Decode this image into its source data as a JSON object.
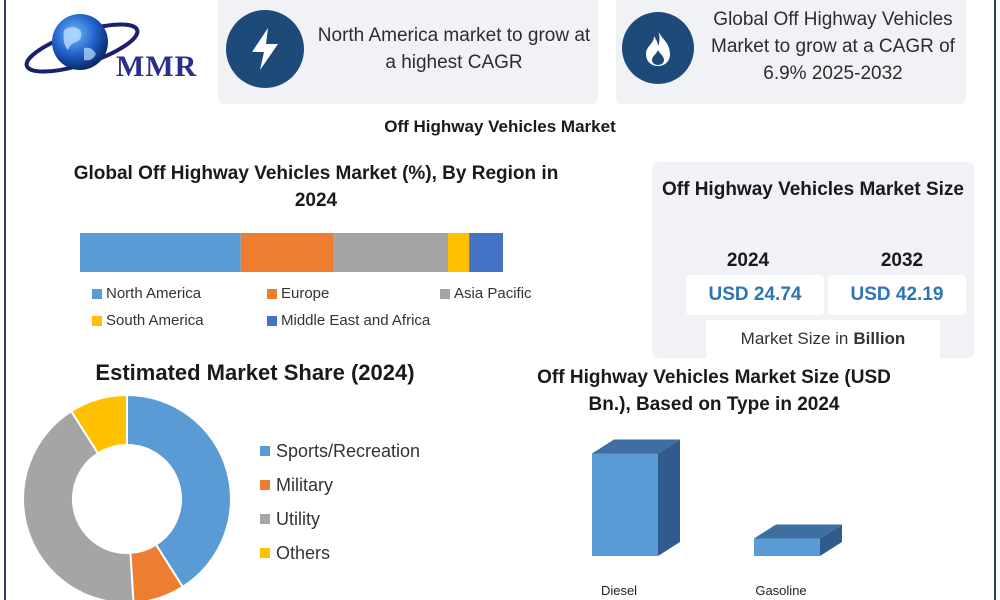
{
  "logo": {
    "text": "MMR",
    "icon": "globe-icon"
  },
  "highlights": [
    {
      "icon": "lightning-icon",
      "text": "North America market to grow at a highest CAGR"
    },
    {
      "icon": "flame-icon",
      "text": "Global Off Highway Vehicles Market to grow at a CAGR of 6.9% 2025-2032"
    }
  ],
  "main_title": "Off Highway Vehicles Market",
  "market_size": {
    "title": "Off Highway Vehicles Market Size",
    "year1": "2024",
    "value1": "USD 24.74",
    "year2": "2032",
    "value2": "USD 42.19",
    "unit_prefix": "Market Size in",
    "unit_bold": "Billion"
  },
  "colors": {
    "blue": "#5b9bd5",
    "orange": "#ed7d31",
    "gray": "#a5a5a5",
    "yellow": "#ffc000",
    "dark_blue": "#4472c4",
    "icon_circle": "#1e4a7a"
  },
  "chart_data": [
    {
      "type": "bar",
      "orientation": "horizontal-stacked-100",
      "title": "Global Off Highway Vehicles Market (%), By Region in 2024",
      "categories": [
        "2024"
      ],
      "series": [
        {
          "name": "North America",
          "values": [
            38
          ]
        },
        {
          "name": "Europe",
          "values": [
            22
          ]
        },
        {
          "name": "Asia Pacific",
          "values": [
            27
          ]
        },
        {
          "name": "South America",
          "values": [
            5
          ]
        },
        {
          "name": "Middle East and Africa",
          "values": [
            8
          ]
        }
      ],
      "legend": "bottom"
    },
    {
      "type": "pie",
      "variant": "donut",
      "title": "Estimated Market Share (2024)",
      "labels": [
        "Sports/Recreation",
        "Military",
        "Utility",
        "Others"
      ],
      "values": [
        41,
        8,
        42,
        9
      ],
      "legend": "right"
    },
    {
      "type": "bar",
      "variant": "3d-column",
      "title": "Off Highway Vehicles Market Size (USD Bn.), Based on Type in 2024",
      "categories": [
        "Diesel",
        "Gasoline"
      ],
      "values": [
        20.5,
        3.5
      ],
      "ylim": [
        0,
        22
      ]
    }
  ]
}
